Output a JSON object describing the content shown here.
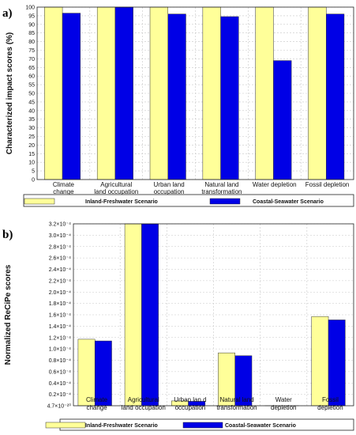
{
  "chart_data": [
    {
      "panel_label": "a)",
      "type": "bar",
      "ylabel": "Characterized impact scores (%)",
      "ylim": [
        0,
        100
      ],
      "yticks": [
        "0",
        "5",
        "10",
        "15",
        "20",
        "25",
        "30",
        "35",
        "40",
        "45",
        "50",
        "55",
        "60",
        "65",
        "70",
        "75",
        "80",
        "85",
        "90",
        "95",
        "100"
      ],
      "categories": [
        [
          "Climate",
          "change"
        ],
        [
          "Agricultural",
          "land occupation"
        ],
        [
          "Urban land",
          "occupation"
        ],
        [
          "Natural land",
          "transformation"
        ],
        [
          "Water depletion"
        ],
        [
          "Fossil depletion"
        ]
      ],
      "series": [
        {
          "name": "Inland-Freshwater Scenario",
          "color": "#ffff99",
          "values": [
            100,
            100,
            100,
            100,
            100,
            100
          ]
        },
        {
          "name": "Coastal-Seawater Scenario",
          "color": "#0000e6",
          "values": [
            96.5,
            100,
            96,
            94.5,
            69,
            96
          ]
        }
      ],
      "grid": true,
      "legend": "bottom"
    },
    {
      "panel_label": "b)",
      "type": "bar",
      "ylabel": "Normalized ReCiPe scores",
      "ylim": [
        0,
        0.00032
      ],
      "yticks": [
        "4.7×10⁻²⁰",
        "0.2×10⁻⁴",
        "0.4×10⁻⁴",
        "0.6×10⁻⁴",
        "0.8×10⁻⁴",
        "1.0×10⁻⁴",
        "1.2×10⁻⁴",
        "1.4×10⁻⁴",
        "1.6×10⁻⁴",
        "1.8×10⁻⁴",
        "2.0×10⁻⁴",
        "2.2×10⁻⁴",
        "2.4×10⁻⁴",
        "2.6×10⁻⁴",
        "2.8×10⁻⁴",
        "3.0×10⁻⁴",
        "3.2×10⁻⁴"
      ],
      "categories": [
        [
          "Climate",
          "change"
        ],
        [
          "Agricultural",
          "land occupation"
        ],
        [
          "Urban lan d",
          "occupation"
        ],
        [
          "Natural land",
          "transformation"
        ],
        [
          "Water",
          "depletion"
        ],
        [
          "Fossil",
          "depletion"
        ]
      ],
      "series": [
        {
          "name": "Inland-Freshwater Scenario",
          "color": "#ffff99",
          "values": [
            0.000117,
            0.00032,
            8.5e-06,
            9.3e-05,
            1e-07,
            0.000157
          ]
        },
        {
          "name": "Coastal-Seawater Scenario",
          "color": "#0000e6",
          "values": [
            0.000114,
            0.00032,
            7.8e-06,
            8.8e-05,
            6e-08,
            0.000151
          ]
        }
      ],
      "grid": true,
      "legend": "bottom"
    }
  ]
}
